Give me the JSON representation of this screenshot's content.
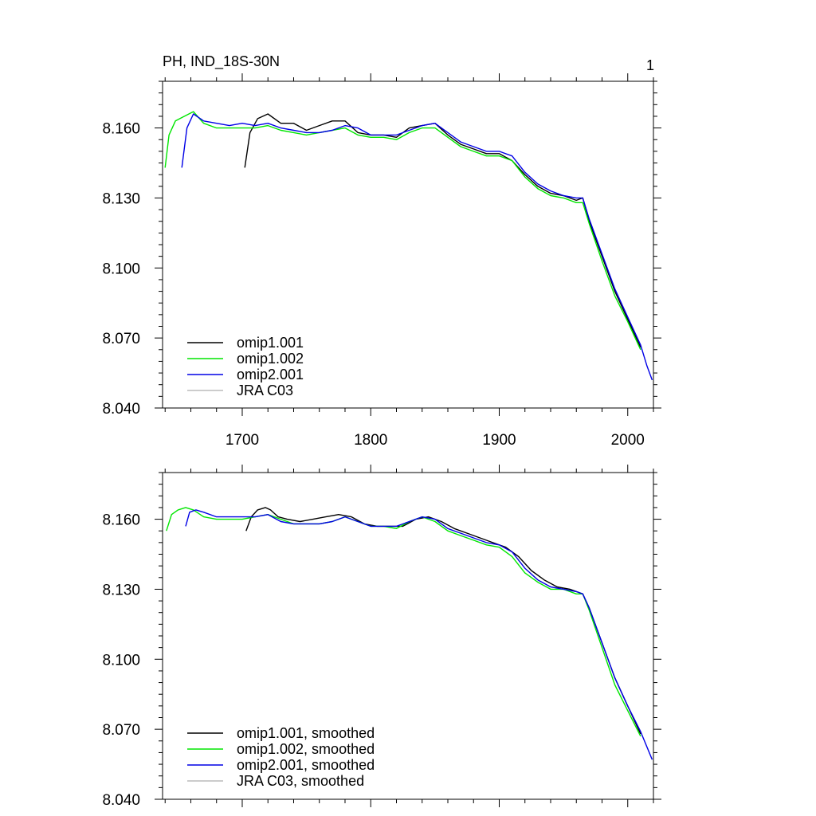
{
  "title": "PH, IND_18S-30N",
  "panel_number": "1",
  "colors": {
    "omip1_001": "#000000",
    "omip1_002": "#00e600",
    "omip2_001": "#0000e6",
    "jra_c03": "#bbbbbb"
  },
  "chart_data": [
    {
      "type": "line",
      "title": "PH, IND_18S-30N",
      "xlim": [
        1638,
        2020
      ],
      "ylim": [
        8.04,
        8.18
      ],
      "xticks": [
        1700,
        1800,
        1900,
        2000
      ],
      "yticks": [
        8.04,
        8.07,
        8.1,
        8.13,
        8.16
      ],
      "ytick_labels": [
        "8.040",
        "8.070",
        "8.100",
        "8.130",
        "8.160"
      ],
      "legend_position": "bottom-left",
      "series": [
        {
          "name": "omip1.001",
          "color": "#000000",
          "x": [
            1702,
            1706,
            1712,
            1720,
            1730,
            1740,
            1750,
            1760,
            1770,
            1780,
            1790,
            1800,
            1810,
            1820,
            1830,
            1840,
            1850,
            1860,
            1870,
            1880,
            1890,
            1900,
            1910,
            1920,
            1930,
            1940,
            1950,
            1960,
            1965,
            1970,
            1980,
            1990,
            2000,
            2010
          ],
          "y": [
            8.143,
            8.158,
            8.164,
            8.166,
            8.162,
            8.162,
            8.159,
            8.161,
            8.163,
            8.163,
            8.158,
            8.157,
            8.157,
            8.156,
            8.16,
            8.161,
            8.162,
            8.157,
            8.153,
            8.151,
            8.149,
            8.149,
            8.146,
            8.14,
            8.135,
            8.132,
            8.131,
            8.129,
            8.13,
            8.12,
            8.105,
            8.09,
            8.078,
            8.066
          ]
        },
        {
          "name": "omip1.002",
          "color": "#00e600",
          "x": [
            1640,
            1643,
            1648,
            1655,
            1662,
            1670,
            1680,
            1690,
            1700,
            1710,
            1720,
            1730,
            1740,
            1750,
            1760,
            1770,
            1780,
            1790,
            1800,
            1810,
            1820,
            1830,
            1840,
            1850,
            1860,
            1870,
            1880,
            1890,
            1900,
            1910,
            1920,
            1930,
            1940,
            1950,
            1960,
            1965,
            1970,
            1980,
            1990,
            2000,
            2010
          ],
          "y": [
            8.143,
            8.157,
            8.163,
            8.165,
            8.167,
            8.162,
            8.16,
            8.16,
            8.16,
            8.16,
            8.161,
            8.159,
            8.158,
            8.157,
            8.158,
            8.159,
            8.16,
            8.157,
            8.156,
            8.156,
            8.155,
            8.158,
            8.16,
            8.16,
            8.156,
            8.152,
            8.15,
            8.148,
            8.148,
            8.146,
            8.139,
            8.134,
            8.131,
            8.13,
            8.128,
            8.128,
            8.119,
            8.103,
            8.088,
            8.077,
            8.065
          ]
        },
        {
          "name": "omip2.001",
          "color": "#0000e6",
          "x": [
            1653,
            1657,
            1662,
            1670,
            1680,
            1690,
            1700,
            1710,
            1720,
            1730,
            1740,
            1750,
            1760,
            1770,
            1780,
            1790,
            1800,
            1810,
            1820,
            1830,
            1840,
            1850,
            1860,
            1870,
            1880,
            1890,
            1900,
            1910,
            1920,
            1930,
            1940,
            1950,
            1960,
            1965,
            1970,
            1980,
            1990,
            2000,
            2010,
            2015,
            2019
          ],
          "y": [
            8.143,
            8.16,
            8.166,
            8.163,
            8.162,
            8.161,
            8.162,
            8.161,
            8.162,
            8.16,
            8.159,
            8.158,
            8.158,
            8.159,
            8.161,
            8.16,
            8.157,
            8.157,
            8.157,
            8.159,
            8.161,
            8.162,
            8.158,
            8.154,
            8.152,
            8.15,
            8.15,
            8.148,
            8.141,
            8.136,
            8.133,
            8.131,
            8.13,
            8.13,
            8.121,
            8.106,
            8.091,
            8.079,
            8.067,
            8.058,
            8.052
          ]
        }
      ],
      "legend": [
        "omip1.001",
        "omip1.002",
        "omip2.001",
        "JRA C03"
      ]
    },
    {
      "type": "line",
      "xlim": [
        1638,
        2020
      ],
      "ylim": [
        8.04,
        8.18
      ],
      "xticks": [
        1700,
        1800,
        1900,
        2000
      ],
      "yticks": [
        8.04,
        8.07,
        8.1,
        8.13,
        8.16
      ],
      "ytick_labels": [
        "8.040",
        "8.070",
        "8.100",
        "8.130",
        "8.160"
      ],
      "legend_position": "bottom-left",
      "series": [
        {
          "name": "omip1.001, smoothed",
          "color": "#000000",
          "x": [
            1703,
            1707,
            1712,
            1718,
            1722,
            1728,
            1735,
            1745,
            1755,
            1765,
            1775,
            1785,
            1795,
            1805,
            1815,
            1825,
            1835,
            1845,
            1855,
            1865,
            1875,
            1885,
            1895,
            1905,
            1915,
            1925,
            1935,
            1945,
            1955,
            1965,
            1970,
            1980,
            1990,
            2000,
            2010
          ],
          "y": [
            8.155,
            8.161,
            8.164,
            8.165,
            8.164,
            8.161,
            8.16,
            8.159,
            8.16,
            8.161,
            8.162,
            8.161,
            8.158,
            8.157,
            8.157,
            8.157,
            8.16,
            8.161,
            8.159,
            8.156,
            8.154,
            8.152,
            8.15,
            8.148,
            8.144,
            8.138,
            8.134,
            8.131,
            8.13,
            8.128,
            8.122,
            8.107,
            8.092,
            8.08,
            8.068
          ]
        },
        {
          "name": "omip1.002, smoothed",
          "color": "#00e600",
          "x": [
            1641,
            1645,
            1650,
            1656,
            1662,
            1670,
            1680,
            1690,
            1700,
            1710,
            1720,
            1730,
            1740,
            1750,
            1760,
            1770,
            1780,
            1790,
            1800,
            1810,
            1820,
            1830,
            1840,
            1850,
            1860,
            1870,
            1880,
            1890,
            1900,
            1910,
            1920,
            1930,
            1940,
            1950,
            1960,
            1965,
            1970,
            1980,
            1990,
            2000,
            2010
          ],
          "y": [
            8.155,
            8.162,
            8.164,
            8.165,
            8.164,
            8.161,
            8.16,
            8.16,
            8.16,
            8.161,
            8.162,
            8.16,
            8.158,
            8.158,
            8.158,
            8.159,
            8.161,
            8.159,
            8.157,
            8.157,
            8.156,
            8.159,
            8.161,
            8.159,
            8.155,
            8.153,
            8.151,
            8.149,
            8.148,
            8.144,
            8.137,
            8.133,
            8.13,
            8.13,
            8.128,
            8.128,
            8.121,
            8.105,
            8.089,
            8.078,
            8.067
          ]
        },
        {
          "name": "omip2.001, smoothed",
          "color": "#0000e6",
          "x": [
            1656,
            1659,
            1664,
            1670,
            1680,
            1690,
            1700,
            1710,
            1720,
            1730,
            1740,
            1750,
            1760,
            1770,
            1780,
            1790,
            1800,
            1810,
            1820,
            1830,
            1840,
            1850,
            1860,
            1870,
            1880,
            1890,
            1900,
            1910,
            1920,
            1930,
            1940,
            1950,
            1960,
            1965,
            1970,
            1980,
            1990,
            2000,
            2010,
            2019
          ],
          "y": [
            8.157,
            8.163,
            8.164,
            8.163,
            8.161,
            8.161,
            8.161,
            8.161,
            8.162,
            8.159,
            8.158,
            8.158,
            8.158,
            8.159,
            8.161,
            8.159,
            8.157,
            8.157,
            8.157,
            8.159,
            8.161,
            8.16,
            8.156,
            8.154,
            8.152,
            8.15,
            8.149,
            8.146,
            8.139,
            8.134,
            8.131,
            8.13,
            8.129,
            8.128,
            8.122,
            8.107,
            8.092,
            8.08,
            8.069,
            8.057
          ]
        }
      ],
      "legend": [
        "omip1.001, smoothed",
        "omip1.002, smoothed",
        "omip2.001, smoothed",
        "JRA C03, smoothed"
      ]
    }
  ]
}
